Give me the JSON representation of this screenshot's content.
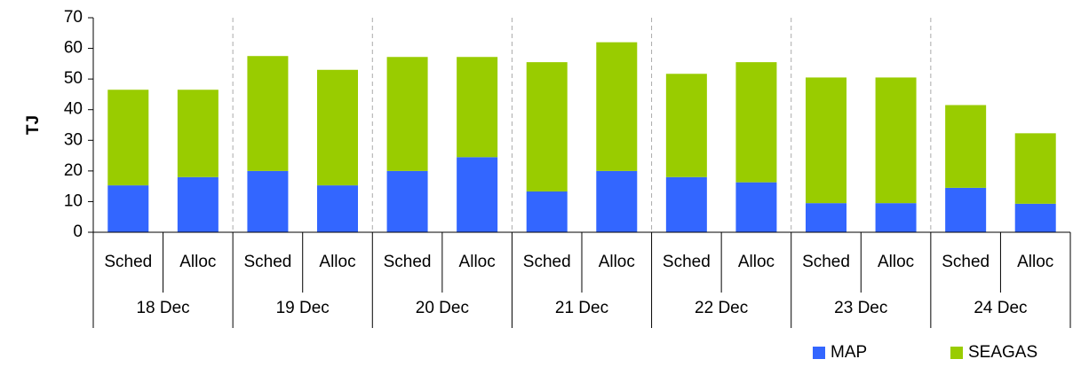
{
  "chart_data": {
    "type": "bar",
    "stacked": true,
    "y_label": "TJ",
    "categories": [
      "Sched",
      "Alloc",
      "Sched",
      "Alloc",
      "Sched",
      "Alloc",
      "Sched",
      "Alloc",
      "Sched",
      "Alloc",
      "Sched",
      "Alloc",
      "Sched",
      "Alloc"
    ],
    "groups": [
      "18 Dec",
      "19 Dec",
      "20 Dec",
      "21 Dec",
      "22 Dec",
      "23 Dec",
      "24 Dec"
    ],
    "series": [
      {
        "name": "MAP",
        "color": "#3366ff",
        "values": [
          15.3,
          18,
          20,
          15.3,
          20,
          24.5,
          13.3,
          20,
          18,
          16.3,
          9.5,
          9.5,
          14.5,
          9.3
        ]
      },
      {
        "name": "SEAGAS",
        "color": "#99cc00",
        "values": [
          31.2,
          28.5,
          37.5,
          37.7,
          37.2,
          32.7,
          42.2,
          42,
          33.7,
          39.2,
          41,
          41,
          27,
          23
        ]
      }
    ],
    "ylim": [
      0,
      70
    ],
    "yticks": [
      0,
      10,
      20,
      30,
      40,
      50,
      60,
      70
    ],
    "group_separators": true,
    "legend": "bottom-right"
  }
}
